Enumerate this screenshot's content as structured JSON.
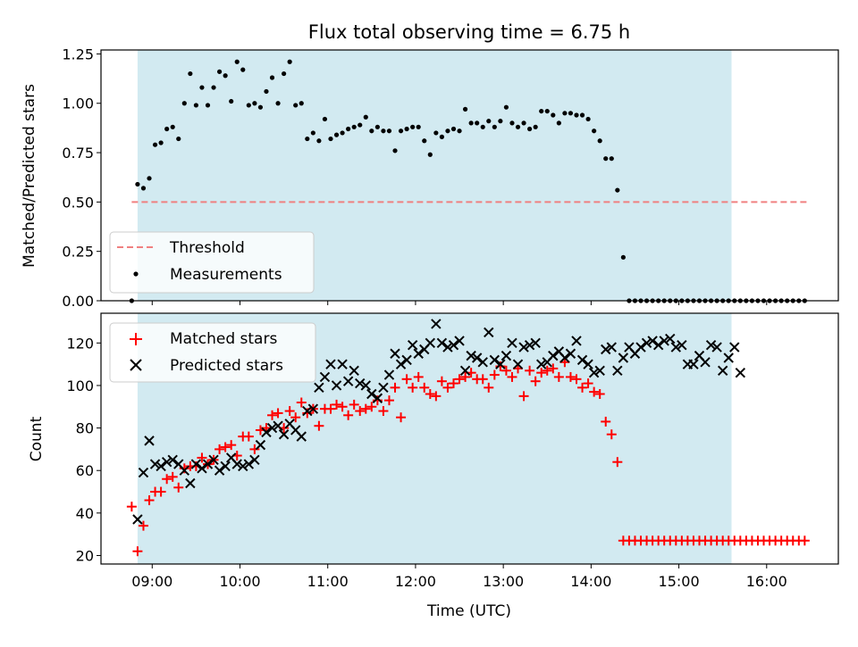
{
  "chart_data": {
    "type": "scatter",
    "title": "Flux total observing time = 6.75 h",
    "xlabel": "Time (UTC)",
    "x_ticks": [
      "09:00",
      "10:00",
      "11:00",
      "12:00",
      "13:00",
      "14:00",
      "15:00",
      "16:00"
    ],
    "shaded_window": {
      "start": "08:50",
      "end": "15:36",
      "color": "#add8e6"
    },
    "colors": {
      "threshold": "#f08080",
      "measurements": "#000000",
      "matched": "#ff0000",
      "predicted": "#000000",
      "shade": "#add8e6"
    },
    "panels": [
      {
        "ylabel": "Matched/Predicted stars",
        "ylim": [
          0,
          1.27
        ],
        "y_ticks": [
          "0.00",
          "0.25",
          "0.50",
          "0.75",
          "1.00",
          "1.25"
        ],
        "legend": {
          "position": "lower-left",
          "entries": [
            "Threshold",
            "Measurements"
          ]
        },
        "series": [
          {
            "name": "Threshold",
            "style": "dashed-line",
            "x": [
              "08:46",
              "16:28"
            ],
            "y": [
              0.5,
              0.5
            ]
          },
          {
            "name": "Measurements",
            "style": "dot",
            "x": [
              "08:46",
              "08:50",
              "08:54",
              "08:58",
              "09:02",
              "09:06",
              "09:10",
              "09:14",
              "09:18",
              "09:22",
              "09:26",
              "09:30",
              "09:34",
              "09:38",
              "09:42",
              "09:46",
              "09:50",
              "09:54",
              "09:58",
              "10:02",
              "10:06",
              "10:10",
              "10:14",
              "10:18",
              "10:22",
              "10:26",
              "10:30",
              "10:34",
              "10:38",
              "10:42",
              "10:46",
              "10:50",
              "10:54",
              "10:58",
              "11:02",
              "11:06",
              "11:10",
              "11:14",
              "11:18",
              "11:22",
              "11:26",
              "11:30",
              "11:34",
              "11:38",
              "11:42",
              "11:46",
              "11:50",
              "11:54",
              "11:58",
              "12:02",
              "12:06",
              "12:10",
              "12:14",
              "12:18",
              "12:22",
              "12:26",
              "12:30",
              "12:34",
              "12:38",
              "12:42",
              "12:46",
              "12:50",
              "12:54",
              "12:58",
              "13:02",
              "13:06",
              "13:10",
              "13:14",
              "13:18",
              "13:22",
              "13:26",
              "13:30",
              "13:34",
              "13:38",
              "13:42",
              "13:46",
              "13:50",
              "13:54",
              "13:58",
              "14:02",
              "14:06",
              "14:10",
              "14:14",
              "14:18",
              "14:22",
              "14:26",
              "14:30",
              "14:34",
              "14:38",
              "14:42",
              "14:46",
              "14:50",
              "14:54",
              "14:58",
              "15:02",
              "15:06",
              "15:10",
              "15:14",
              "15:18",
              "15:22",
              "15:26",
              "15:30",
              "15:34",
              "15:38",
              "15:42",
              "15:46",
              "15:50",
              "15:54",
              "15:58",
              "16:02",
              "16:06",
              "16:10",
              "16:14",
              "16:18",
              "16:22",
              "16:26"
            ],
            "y": [
              0.0,
              0.59,
              0.57,
              0.62,
              0.79,
              0.8,
              0.87,
              0.88,
              0.82,
              1.0,
              1.15,
              0.99,
              1.08,
              0.99,
              1.08,
              1.16,
              1.14,
              1.01,
              1.21,
              1.17,
              0.99,
              1.0,
              0.98,
              1.06,
              1.13,
              1.0,
              1.15,
              1.21,
              0.99,
              1.0,
              0.82,
              0.85,
              0.81,
              0.92,
              0.82,
              0.84,
              0.85,
              0.87,
              0.88,
              0.89,
              0.93,
              0.86,
              0.88,
              0.86,
              0.86,
              0.76,
              0.86,
              0.87,
              0.88,
              0.88,
              0.81,
              0.74,
              0.85,
              0.83,
              0.86,
              0.87,
              0.86,
              0.97,
              0.9,
              0.9,
              0.88,
              0.91,
              0.88,
              0.91,
              0.98,
              0.9,
              0.88,
              0.9,
              0.87,
              0.88,
              0.96,
              0.96,
              0.94,
              0.9,
              0.95,
              0.95,
              0.94,
              0.94,
              0.92,
              0.86,
              0.81,
              0.72,
              0.72,
              0.56,
              0.22,
              0.0,
              0.0,
              0.0,
              0.0,
              0.0,
              0.0,
              0.0,
              0.0,
              0.0,
              0.0,
              0.0,
              0.0,
              0.0,
              0.0,
              0.0,
              0.0,
              0.0,
              0.0,
              0.0,
              0.0,
              0.0,
              0.0,
              0.0,
              0.0,
              0.0,
              0.0,
              0.0,
              0.0,
              0.0,
              0.0,
              0.0
            ]
          }
        ]
      },
      {
        "ylabel": "Count",
        "ylim": [
          16,
          134
        ],
        "y_ticks": [
          "20",
          "40",
          "60",
          "80",
          "100",
          "120"
        ],
        "legend": {
          "position": "upper-left",
          "entries": [
            "Matched stars",
            "Predicted stars"
          ]
        },
        "series": [
          {
            "name": "Matched stars",
            "style": "plus",
            "x": [
              "08:46",
              "08:50",
              "08:54",
              "08:58",
              "09:02",
              "09:06",
              "09:10",
              "09:14",
              "09:18",
              "09:22",
              "09:26",
              "09:30",
              "09:34",
              "09:38",
              "09:42",
              "09:46",
              "09:50",
              "09:54",
              "09:58",
              "10:02",
              "10:06",
              "10:10",
              "10:14",
              "10:18",
              "10:22",
              "10:26",
              "10:30",
              "10:34",
              "10:38",
              "10:42",
              "10:46",
              "10:50",
              "10:54",
              "10:58",
              "11:02",
              "11:06",
              "11:10",
              "11:14",
              "11:18",
              "11:22",
              "11:26",
              "11:30",
              "11:34",
              "11:38",
              "11:42",
              "11:46",
              "11:50",
              "11:54",
              "11:58",
              "12:02",
              "12:06",
              "12:10",
              "12:14",
              "12:18",
              "12:22",
              "12:26",
              "12:30",
              "12:34",
              "12:38",
              "12:42",
              "12:46",
              "12:50",
              "12:54",
              "12:58",
              "13:02",
              "13:06",
              "13:10",
              "13:14",
              "13:18",
              "13:22",
              "13:26",
              "13:30",
              "13:34",
              "13:38",
              "13:42",
              "13:46",
              "13:50",
              "13:54",
              "13:58",
              "14:02",
              "14:06",
              "14:10",
              "14:14",
              "14:18",
              "14:22",
              "14:26",
              "14:30",
              "14:34",
              "14:38",
              "14:42",
              "14:46",
              "14:50",
              "14:54",
              "14:58",
              "15:02",
              "15:06",
              "15:10",
              "15:14",
              "15:18",
              "15:22",
              "15:26",
              "15:30",
              "15:34",
              "15:38",
              "15:42",
              "15:46",
              "15:50",
              "15:54",
              "15:58",
              "16:02",
              "16:06",
              "16:10",
              "16:14",
              "16:18",
              "16:22",
              "16:26"
            ],
            "y": [
              43,
              22,
              34,
              46,
              50,
              50,
              56,
              57,
              52,
              61,
              62,
              62,
              66,
              63,
              65,
              70,
              71,
              72,
              67,
              76,
              76,
              70,
              79,
              80,
              86,
              87,
              80,
              88,
              85,
              92,
              87,
              89,
              81,
              89,
              89,
              91,
              90,
              86,
              91,
              88,
              89,
              90,
              93,
              88,
              93,
              99,
              85,
              103,
              99,
              104,
              99,
              96,
              95,
              102,
              99,
              101,
              103,
              104,
              106,
              103,
              103,
              99,
              105,
              109,
              107,
              104,
              108,
              95,
              107,
              102,
              106,
              107,
              108,
              104,
              111,
              104,
              103,
              99,
              101,
              97,
              96,
              83,
              77,
              64,
              27,
              27,
              27,
              27,
              27,
              27,
              27,
              27,
              27,
              27,
              27,
              27,
              27,
              27,
              27,
              27,
              27,
              27,
              27,
              27,
              27,
              27,
              27,
              27,
              27,
              27,
              27,
              27,
              27,
              27,
              27,
              27
            ]
          },
          {
            "name": "Predicted stars",
            "style": "x",
            "x": [
              "08:50",
              "08:54",
              "08:58",
              "09:02",
              "09:06",
              "09:10",
              "09:14",
              "09:18",
              "09:22",
              "09:26",
              "09:30",
              "09:34",
              "09:38",
              "09:42",
              "09:46",
              "09:50",
              "09:54",
              "09:58",
              "10:02",
              "10:06",
              "10:10",
              "10:14",
              "10:18",
              "10:22",
              "10:26",
              "10:30",
              "10:34",
              "10:38",
              "10:42",
              "10:46",
              "10:50",
              "10:54",
              "10:58",
              "11:02",
              "11:06",
              "11:10",
              "11:14",
              "11:18",
              "11:22",
              "11:26",
              "11:30",
              "11:34",
              "11:38",
              "11:42",
              "11:46",
              "11:50",
              "11:54",
              "11:58",
              "12:02",
              "12:06",
              "12:10",
              "12:14",
              "12:18",
              "12:22",
              "12:26",
              "12:30",
              "12:34",
              "12:38",
              "12:42",
              "12:46",
              "12:50",
              "12:54",
              "12:58",
              "13:02",
              "13:06",
              "13:10",
              "13:14",
              "13:18",
              "13:22",
              "13:26",
              "13:30",
              "13:34",
              "13:38",
              "13:42",
              "13:46",
              "13:50",
              "13:54",
              "13:58",
              "14:02",
              "14:06",
              "14:10",
              "14:14",
              "14:18",
              "14:22",
              "14:26",
              "14:30",
              "14:34",
              "14:38",
              "14:42",
              "14:46",
              "14:50",
              "14:54",
              "14:58",
              "15:02",
              "15:06",
              "15:10",
              "15:14",
              "15:18",
              "15:22",
              "15:26",
              "15:30",
              "15:34",
              "15:38",
              "15:42"
            ],
            "y": [
              37,
              59,
              74,
              63,
              62,
              64,
              65,
              63,
              60,
              54,
              63,
              61,
              63,
              65,
              60,
              62,
              66,
              63,
              62,
              63,
              65,
              72,
              78,
              80,
              81,
              77,
              82,
              79,
              76,
              88,
              89,
              99,
              104,
              110,
              100,
              110,
              102,
              107,
              101,
              100,
              96,
              94,
              99,
              105,
              115,
              110,
              112,
              119,
              115,
              117,
              120,
              129,
              120,
              118,
              119,
              121,
              107,
              114,
              113,
              111,
              125,
              112,
              110,
              114,
              120,
              110,
              118,
              119,
              120,
              110,
              111,
              114,
              116,
              113,
              115,
              121,
              112,
              110,
              106,
              107,
              117,
              118,
              107,
              113,
              118,
              115,
              118,
              120,
              121,
              119,
              121,
              122,
              118,
              119,
              110,
              110,
              114,
              111,
              119,
              118,
              107,
              113,
              118,
              106
            ]
          }
        ]
      }
    ]
  }
}
